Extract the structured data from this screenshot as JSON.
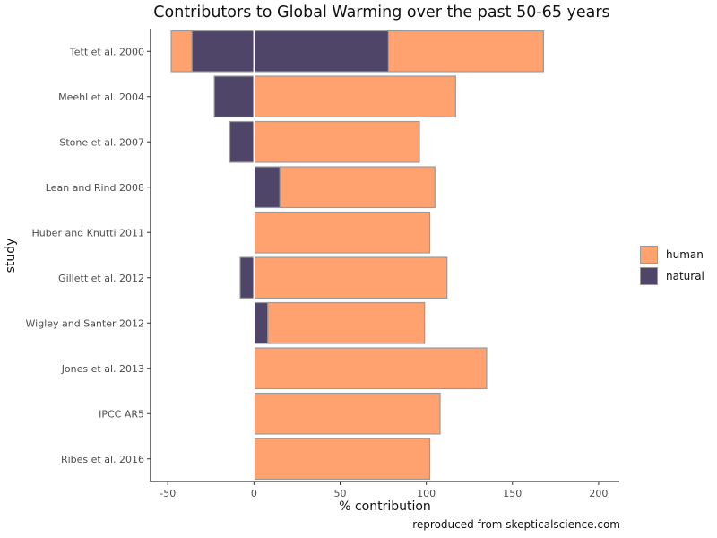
{
  "chart_data": {
    "type": "bar",
    "orientation": "horizontal",
    "stacked": true,
    "title": "Contributors to Global Warming over the past 50-65 years",
    "xlabel": "% contribution",
    "ylabel": "study",
    "xlim": [
      -60,
      212
    ],
    "xticks": [
      -50,
      0,
      50,
      100,
      150,
      200
    ],
    "categories": [
      "Tett et al. 2000",
      "Meehl et al. 2004",
      "Stone et al. 2007",
      "Lean and Rind 2008",
      "Huber and Knutti 2011",
      "Gillett et al. 2012",
      "Wigley and Santer 2012",
      "Jones et al. 2013",
      "IPCC AR5",
      "Ribes et al. 2016"
    ],
    "series": [
      {
        "name": "human",
        "color": "#FFA270",
        "segments": [
          [
            [
              -48,
              -36
            ],
            [
              78,
              168
            ]
          ],
          [
            [
              0,
              117
            ]
          ],
          [
            [
              0,
              96
            ]
          ],
          [
            [
              15,
              105
            ]
          ],
          [
            [
              0,
              102
            ]
          ],
          [
            [
              0,
              112
            ]
          ],
          [
            [
              8,
              99
            ]
          ],
          [
            [
              0,
              135
            ]
          ],
          [
            [
              0,
              108
            ]
          ],
          [
            [
              0,
              102
            ]
          ]
        ]
      },
      {
        "name": "natural",
        "color": "#4E4569",
        "segments": [
          [
            [
              -36,
              78
            ]
          ],
          [
            [
              -23,
              0
            ]
          ],
          [
            [
              -14,
              0
            ]
          ],
          [
            [
              0,
              15
            ]
          ],
          [],
          [
            [
              -8,
              0
            ]
          ],
          [
            [
              0,
              8
            ]
          ],
          [],
          [],
          []
        ]
      }
    ],
    "legend_position": "right",
    "grid": false,
    "caption": "reproduced from skepticalscience.com"
  },
  "colors": {
    "human": "#FFA270",
    "natural": "#4E4569",
    "bar_outline": "#9a9a9a",
    "zero_line": "#ffffff"
  }
}
